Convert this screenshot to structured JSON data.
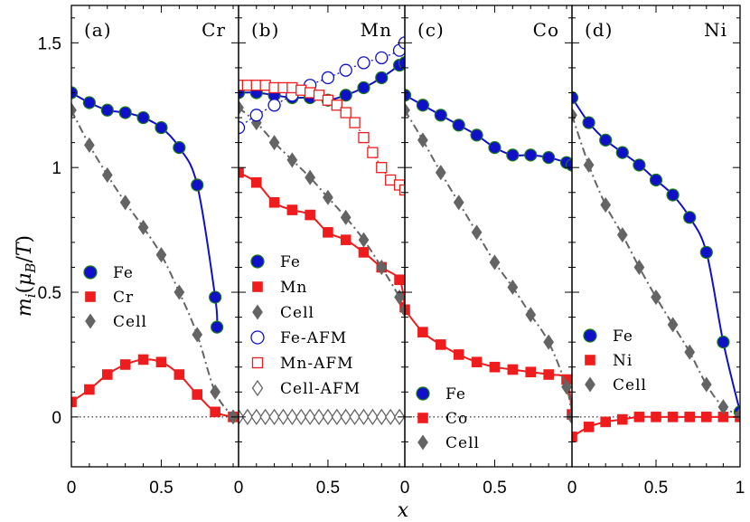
{
  "chart_data": {
    "type": "line",
    "title": "",
    "xlabel": "x",
    "ylabel": "m_i(μ_B/T)",
    "ylabel_parts": {
      "m": "m",
      "i": "i",
      "open": "(",
      "mu": "μ",
      "B": "B",
      "slash": "/",
      "T": "T",
      "close": ")"
    },
    "ylim": [
      -0.2,
      1.65
    ],
    "yticks": [
      0,
      0.5,
      1,
      1.5
    ],
    "ytick_labels": [
      "0",
      "0.5",
      "1",
      "1.5"
    ],
    "xticks": [
      0,
      0.5
    ],
    "xtick_labels": [
      "0",
      "0.5",
      "0",
      "0.5",
      "0",
      "0.5",
      "0",
      "0.5",
      "1"
    ],
    "colors": {
      "fe": "#1010c8",
      "solute": "#ee1c1c",
      "cell": "#646464"
    },
    "panels": [
      {
        "label": "(a)",
        "element": "Cr",
        "xlim": [
          0,
          0.93
        ],
        "series": [
          {
            "name": "Fe",
            "role": "fe",
            "x": [
              0,
              0.1,
              0.2,
              0.3,
              0.4,
              0.5,
              0.6,
              0.7,
              0.8,
              0.81
            ],
            "y": [
              1.3,
              1.26,
              1.23,
              1.22,
              1.2,
              1.16,
              1.08,
              0.93,
              0.48,
              0.36
            ]
          },
          {
            "name": "Cr",
            "role": "solute",
            "x": [
              0,
              0.1,
              0.2,
              0.3,
              0.4,
              0.5,
              0.6,
              0.7,
              0.8,
              0.9
            ],
            "y": [
              0.06,
              0.11,
              0.17,
              0.21,
              0.23,
              0.22,
              0.17,
              0.09,
              0.02,
              0.0
            ]
          },
          {
            "name": "Cell",
            "role": "cell",
            "x": [
              0,
              0.1,
              0.2,
              0.3,
              0.4,
              0.5,
              0.6,
              0.7,
              0.8,
              0.9
            ],
            "y": [
              1.23,
              1.09,
              0.97,
              0.86,
              0.76,
              0.65,
              0.5,
              0.33,
              0.1,
              0.0
            ]
          }
        ],
        "legend": [
          "Fe",
          "Cr",
          "Cell"
        ]
      },
      {
        "label": "(b)",
        "element": "Mn",
        "xlim": [
          0,
          0.93
        ],
        "series": [
          {
            "name": "Fe",
            "role": "fe",
            "x": [
              0,
              0.1,
              0.2,
              0.3,
              0.4,
              0.5,
              0.6,
              0.7,
              0.8,
              0.9,
              0.93
            ],
            "y": [
              1.3,
              1.3,
              1.29,
              1.28,
              1.28,
              1.27,
              1.29,
              1.32,
              1.36,
              1.41,
              1.42
            ]
          },
          {
            "name": "Mn",
            "role": "solute",
            "x": [
              0,
              0.1,
              0.2,
              0.3,
              0.4,
              0.5,
              0.6,
              0.7,
              0.8,
              0.9,
              0.93
            ],
            "y": [
              0.98,
              0.94,
              0.86,
              0.83,
              0.81,
              0.74,
              0.71,
              0.66,
              0.6,
              0.55,
              0.44
            ]
          },
          {
            "name": "Cell",
            "role": "cell",
            "x": [
              0,
              0.1,
              0.2,
              0.3,
              0.4,
              0.5,
              0.6,
              0.7,
              0.8,
              0.9,
              0.93
            ],
            "y": [
              1.24,
              1.18,
              1.1,
              1.03,
              0.96,
              0.88,
              0.8,
              0.71,
              0.6,
              0.48,
              0.43
            ]
          },
          {
            "name": "Fe-AFM",
            "role": "fe",
            "open": true,
            "x": [
              0,
              0.1,
              0.2,
              0.3,
              0.4,
              0.5,
              0.6,
              0.7,
              0.8,
              0.9,
              0.93
            ],
            "y": [
              1.16,
              1.21,
              1.25,
              1.29,
              1.33,
              1.36,
              1.39,
              1.42,
              1.44,
              1.47,
              1.5
            ]
          },
          {
            "name": "Mn-AFM",
            "role": "solute",
            "open": true,
            "x": [
              0,
              0.05,
              0.1,
              0.15,
              0.2,
              0.25,
              0.3,
              0.35,
              0.4,
              0.45,
              0.5,
              0.55,
              0.6,
              0.65,
              0.7,
              0.75,
              0.8,
              0.85,
              0.9,
              0.93
            ],
            "y": [
              1.33,
              1.33,
              1.33,
              1.33,
              1.32,
              1.32,
              1.32,
              1.31,
              1.3,
              1.29,
              1.27,
              1.25,
              1.22,
              1.18,
              1.12,
              1.06,
              1.0,
              0.95,
              0.93,
              0.91
            ]
          },
          {
            "name": "Cell-AFM",
            "role": "cell",
            "open": true,
            "x": [
              0,
              0.05,
              0.1,
              0.15,
              0.2,
              0.25,
              0.3,
              0.35,
              0.4,
              0.45,
              0.5,
              0.55,
              0.6,
              0.65,
              0.7,
              0.75,
              0.8,
              0.85,
              0.9
            ],
            "y": [
              0,
              0,
              0,
              0,
              0,
              0,
              0,
              0,
              0,
              0,
              0,
              0,
              0,
              0,
              0,
              0,
              0,
              0,
              0
            ]
          }
        ],
        "legend": [
          "Fe",
          "Mn",
          "Cell",
          "Fe-AFM",
          "Mn-AFM",
          "Cell-AFM"
        ]
      },
      {
        "label": "(c)",
        "element": "Co",
        "xlim": [
          0,
          0.93
        ],
        "series": [
          {
            "name": "Fe",
            "role": "fe",
            "x": [
              0,
              0.1,
              0.2,
              0.3,
              0.4,
              0.5,
              0.6,
              0.7,
              0.8,
              0.9,
              0.93
            ],
            "y": [
              1.29,
              1.25,
              1.21,
              1.17,
              1.13,
              1.08,
              1.05,
              1.05,
              1.04,
              1.02,
              1.01
            ]
          },
          {
            "name": "Co",
            "role": "solute",
            "x": [
              0,
              0.1,
              0.2,
              0.3,
              0.4,
              0.5,
              0.6,
              0.7,
              0.8,
              0.9,
              0.93
            ],
            "y": [
              0.43,
              0.34,
              0.29,
              0.25,
              0.22,
              0.2,
              0.19,
              0.18,
              0.17,
              0.15,
              0.01
            ]
          },
          {
            "name": "Cell",
            "role": "cell",
            "x": [
              0,
              0.1,
              0.2,
              0.3,
              0.4,
              0.5,
              0.6,
              0.7,
              0.8,
              0.9,
              0.93
            ],
            "y": [
              1.23,
              1.11,
              0.98,
              0.86,
              0.74,
              0.62,
              0.52,
              0.41,
              0.3,
              0.12,
              0.0
            ]
          }
        ],
        "legend": [
          "Fe",
          "Co",
          "Cell"
        ]
      },
      {
        "label": "(d)",
        "element": "Ni",
        "xlim": [
          0,
          1.0
        ],
        "series": [
          {
            "name": "Fe",
            "role": "fe",
            "x": [
              0,
              0.1,
              0.2,
              0.3,
              0.4,
              0.5,
              0.6,
              0.7,
              0.8,
              0.9,
              1.0
            ],
            "y": [
              1.28,
              1.18,
              1.11,
              1.06,
              1.01,
              0.95,
              0.89,
              0.8,
              0.66,
              0.3,
              0.02
            ]
          },
          {
            "name": "Ni",
            "role": "solute",
            "x": [
              0,
              0.1,
              0.2,
              0.3,
              0.4,
              0.5,
              0.6,
              0.7,
              0.8,
              0.9,
              1.0
            ],
            "y": [
              -0.08,
              -0.04,
              -0.02,
              -0.01,
              0.0,
              0.0,
              0.0,
              0.0,
              0.0,
              0.0,
              0.0
            ]
          },
          {
            "name": "Cell",
            "role": "cell",
            "x": [
              0,
              0.1,
              0.2,
              0.3,
              0.4,
              0.5,
              0.6,
              0.7,
              0.8,
              0.9,
              1.0
            ],
            "y": [
              1.21,
              1.01,
              0.85,
              0.73,
              0.6,
              0.48,
              0.37,
              0.26,
              0.13,
              0.04,
              0.01
            ]
          }
        ],
        "legend": [
          "Fe",
          "Ni",
          "Cell"
        ]
      }
    ]
  }
}
